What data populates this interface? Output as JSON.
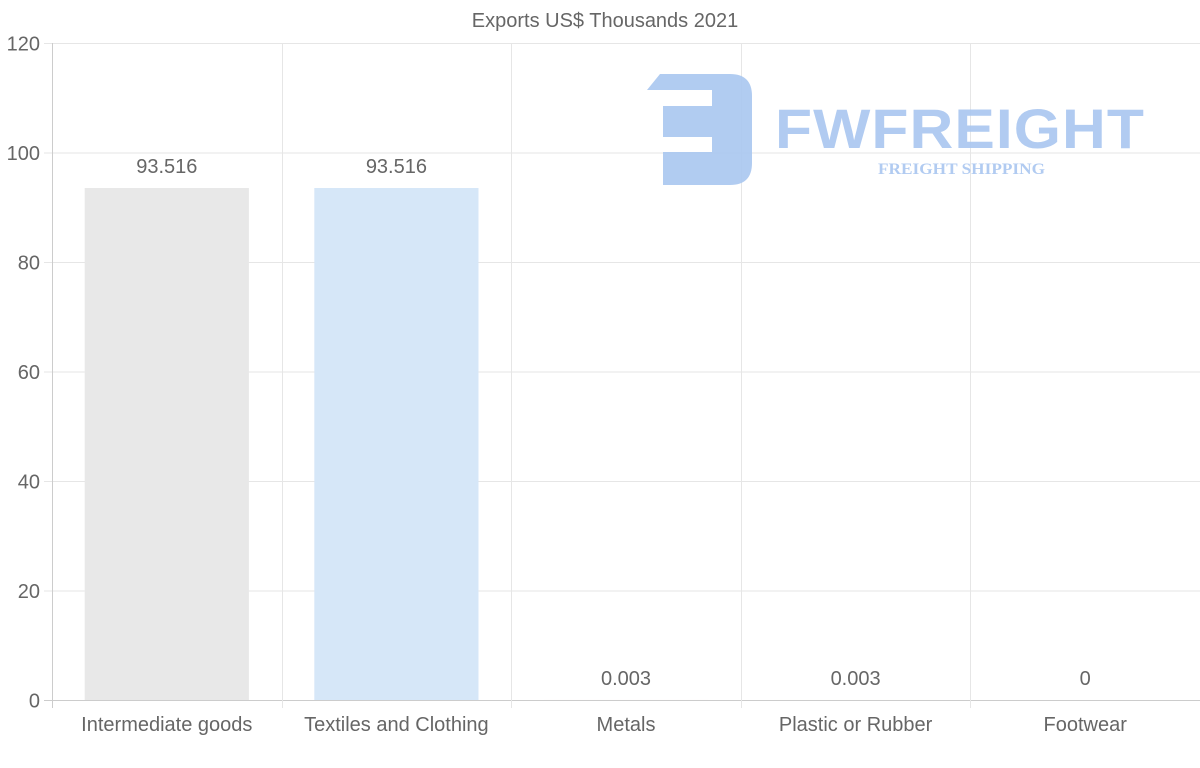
{
  "chart_data": {
    "type": "bar",
    "title": "Exports US$ Thousands 2021",
    "xlabel": "",
    "ylabel": "",
    "ylim": [
      0,
      120
    ],
    "yticks": [
      0,
      20,
      40,
      60,
      80,
      100,
      120
    ],
    "grid": true,
    "categories": [
      "Intermediate goods",
      "Textiles and Clothing",
      "Metals",
      "Plastic or Rubber",
      "Footwear"
    ],
    "values": [
      93.516,
      93.516,
      0.003,
      0.003,
      0
    ],
    "value_labels": [
      "93.516",
      "93.516",
      "0.003",
      "0.003",
      "0"
    ],
    "bar_colors": [
      "#e8e8e8",
      "#d6e7f8",
      "#f5d6d6",
      "#fbe6cf",
      "#d8f0ec"
    ]
  },
  "watermark": {
    "brand": "FWFREIGHT",
    "tagline": "FREIGHT SHIPPING",
    "color": "#a9c6f0"
  }
}
